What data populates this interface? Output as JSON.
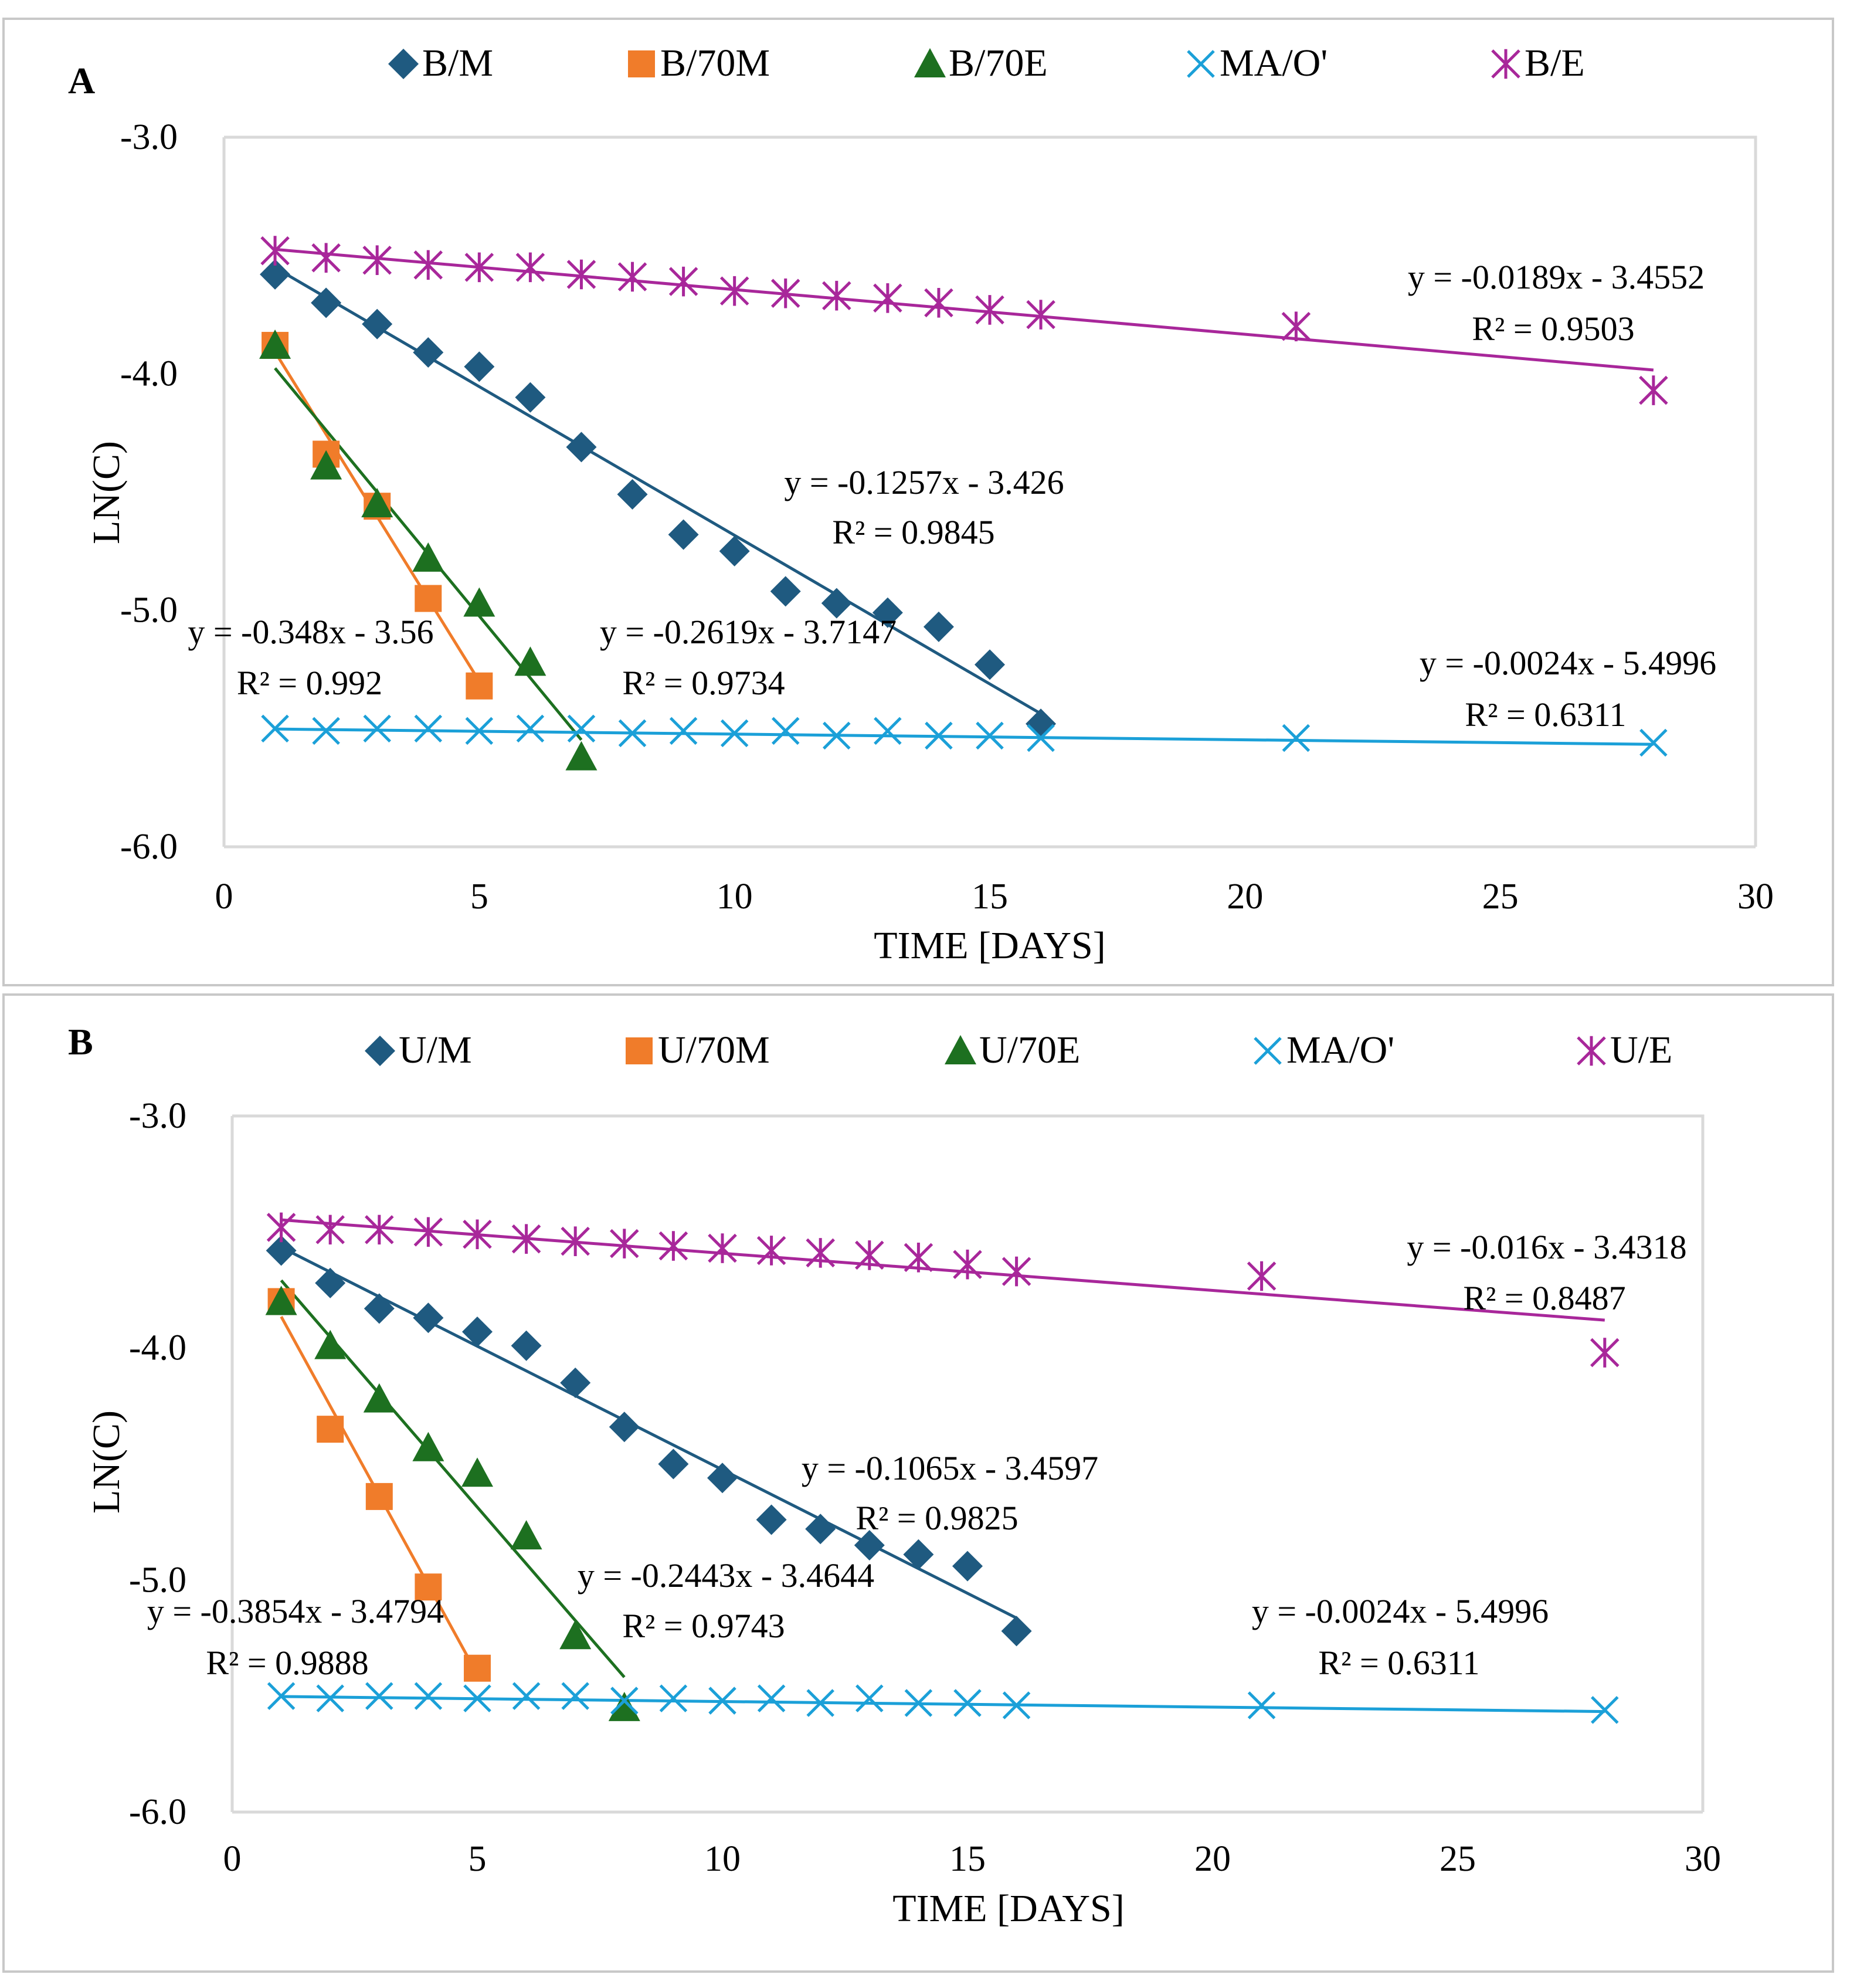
{
  "chart_data": [
    {
      "type": "scatter",
      "panel_label": "A",
      "xlabel": "TIME [DAYS]",
      "ylabel": "LN(C)",
      "xlim": [
        0,
        30
      ],
      "ylim": [
        -6.0,
        -3.0
      ],
      "xticks": [
        "0",
        "5",
        "10",
        "15",
        "20",
        "25",
        "30"
      ],
      "yticks": [
        "-3.0",
        "-4.0",
        "-5.0",
        "-6.0"
      ],
      "grid": false,
      "legend_position": "top",
      "series": [
        {
          "name": "B/M",
          "marker": "diamond",
          "color": "#1f5a80",
          "x": [
            1,
            2,
            3,
            4,
            5,
            6,
            7,
            8,
            9,
            10,
            11,
            12,
            13,
            14,
            15,
            16
          ],
          "y": [
            -3.58,
            -3.7,
            -3.79,
            -3.91,
            -3.97,
            -4.1,
            -4.31,
            -4.51,
            -4.68,
            -4.75,
            -4.92,
            -4.97,
            -5.01,
            -5.07,
            -5.23,
            -5.48
          ],
          "fit": {
            "slope": -0.1257,
            "intercept": -3.426,
            "x_range": [
              1,
              16
            ]
          },
          "equation": "y = -0.1257x - 3.426",
          "r2": "R² = 0.9845"
        },
        {
          "name": "B/70M",
          "marker": "square",
          "color": "#f07c2a",
          "x": [
            1,
            2,
            3,
            4,
            5
          ],
          "y": [
            -3.88,
            -4.34,
            -4.56,
            -4.95,
            -5.32
          ],
          "fit": {
            "slope": -0.348,
            "intercept": -3.56,
            "x_range": [
              1,
              5
            ]
          },
          "equation": "y = -0.348x - 3.56",
          "r2": "R² = 0.992"
        },
        {
          "name": "B/70E",
          "marker": "triangle",
          "color": "#1d7020",
          "x": [
            1,
            2,
            3,
            4,
            5,
            6,
            7
          ],
          "y": [
            -3.88,
            -4.39,
            -4.55,
            -4.78,
            -4.97,
            -5.22,
            -5.62
          ],
          "fit": {
            "slope": -0.2619,
            "intercept": -3.7147,
            "x_range": [
              1,
              7
            ]
          },
          "equation": "y = -0.2619x - 3.7147",
          "r2": "R² = 0.9734"
        },
        {
          "name": "MA/O'",
          "marker": "x",
          "color": "#1ba0d8",
          "x": [
            1,
            2,
            3,
            4,
            5,
            6,
            7,
            8,
            9,
            10,
            11,
            12,
            13,
            14,
            15,
            16,
            21,
            28
          ],
          "y": [
            -5.5,
            -5.51,
            -5.5,
            -5.5,
            -5.51,
            -5.5,
            -5.5,
            -5.52,
            -5.51,
            -5.52,
            -5.51,
            -5.53,
            -5.51,
            -5.53,
            -5.53,
            -5.54,
            -5.54,
            -5.56
          ],
          "fit": {
            "slope": -0.0024,
            "intercept": -5.4996,
            "x_range": [
              1,
              28
            ]
          },
          "equation": "y = -0.0024x - 5.4996",
          "r2": "R² = 0.6311"
        },
        {
          "name": "B/E",
          "marker": "asterisk",
          "color": "#a8279a",
          "x": [
            1,
            2,
            3,
            4,
            5,
            6,
            7,
            8,
            9,
            10,
            11,
            12,
            13,
            14,
            15,
            16,
            21,
            28
          ],
          "y": [
            -3.48,
            -3.51,
            -3.52,
            -3.54,
            -3.55,
            -3.55,
            -3.58,
            -3.59,
            -3.61,
            -3.65,
            -3.66,
            -3.67,
            -3.68,
            -3.7,
            -3.73,
            -3.75,
            -3.8,
            -4.07
          ],
          "fit": {
            "slope": -0.0189,
            "intercept": -3.4552,
            "x_range": [
              1,
              28
            ]
          },
          "equation": "y = -0.0189x - 3.4552",
          "r2": "R² = 0.9503"
        }
      ]
    },
    {
      "type": "scatter",
      "panel_label": "B",
      "xlabel": "TIME [DAYS]",
      "ylabel": "LN(C)",
      "xlim": [
        0,
        30
      ],
      "ylim": [
        -6.0,
        -3.0
      ],
      "xticks": [
        "0",
        "5",
        "10",
        "15",
        "20",
        "25",
        "30"
      ],
      "yticks": [
        "-3.0",
        "-4.0",
        "-5.0",
        "-6.0"
      ],
      "grid": false,
      "legend_position": "top",
      "series": [
        {
          "name": "U/M",
          "marker": "diamond",
          "color": "#1f5a80",
          "x": [
            1,
            2,
            3,
            4,
            5,
            6,
            7,
            8,
            9,
            10,
            11,
            12,
            13,
            14,
            15,
            16
          ],
          "y": [
            -3.58,
            -3.72,
            -3.83,
            -3.87,
            -3.93,
            -3.99,
            -4.15,
            -4.34,
            -4.5,
            -4.56,
            -4.74,
            -4.78,
            -4.85,
            -4.89,
            -4.94,
            -5.22
          ],
          "fit": {
            "slope": -0.1065,
            "intercept": -3.4597,
            "x_range": [
              1,
              16
            ]
          },
          "equation": "y = -0.1065x - 3.4597",
          "r2": "R² = 0.9825"
        },
        {
          "name": "U/70M",
          "marker": "square",
          "color": "#f07c2a",
          "x": [
            1,
            2,
            3,
            4,
            5
          ],
          "y": [
            -3.8,
            -4.35,
            -4.64,
            -5.03,
            -5.38
          ],
          "fit": {
            "slope": -0.3854,
            "intercept": -3.4794,
            "x_range": [
              1,
              5
            ]
          },
          "equation": "y = -0.3854x - 3.4794",
          "r2": "R² = 0.9888"
        },
        {
          "name": "U/70E",
          "marker": "triangle",
          "color": "#1d7020",
          "x": [
            1,
            2,
            3,
            4,
            5,
            6,
            7,
            8
          ],
          "y": [
            -3.8,
            -3.99,
            -4.22,
            -4.43,
            -4.54,
            -4.81,
            -5.24,
            -5.55
          ],
          "fit": {
            "slope": -0.2443,
            "intercept": -3.4644,
            "x_range": [
              1,
              8
            ]
          },
          "equation": "y = -0.2443x - 3.4644",
          "r2": "R² = 0.9743"
        },
        {
          "name": "MA/O'",
          "marker": "x",
          "color": "#1ba0d8",
          "x": [
            1,
            2,
            3,
            4,
            5,
            6,
            7,
            8,
            9,
            10,
            11,
            12,
            13,
            14,
            15,
            16,
            21,
            28
          ],
          "y": [
            -5.5,
            -5.51,
            -5.5,
            -5.5,
            -5.51,
            -5.5,
            -5.5,
            -5.52,
            -5.51,
            -5.52,
            -5.51,
            -5.53,
            -5.51,
            -5.53,
            -5.53,
            -5.54,
            -5.54,
            -5.56
          ],
          "fit": {
            "slope": -0.0024,
            "intercept": -5.4996,
            "x_range": [
              1,
              28
            ]
          },
          "equation": "y = -0.0024x - 5.4996",
          "r2": "R² = 0.6311"
        },
        {
          "name": "U/E",
          "marker": "asterisk",
          "color": "#a8279a",
          "x": [
            1,
            2,
            3,
            4,
            5,
            6,
            7,
            8,
            9,
            10,
            11,
            12,
            13,
            14,
            15,
            16,
            21,
            28
          ],
          "y": [
            -3.48,
            -3.49,
            -3.49,
            -3.5,
            -3.51,
            -3.53,
            -3.54,
            -3.55,
            -3.56,
            -3.57,
            -3.58,
            -3.59,
            -3.6,
            -3.61,
            -3.64,
            -3.67,
            -3.69,
            -4.02
          ],
          "fit": {
            "slope": -0.016,
            "intercept": -3.4318,
            "x_range": [
              1,
              28
            ]
          },
          "equation": "y = -0.016x - 3.4318",
          "r2": "R² = 0.8487"
        }
      ]
    }
  ]
}
